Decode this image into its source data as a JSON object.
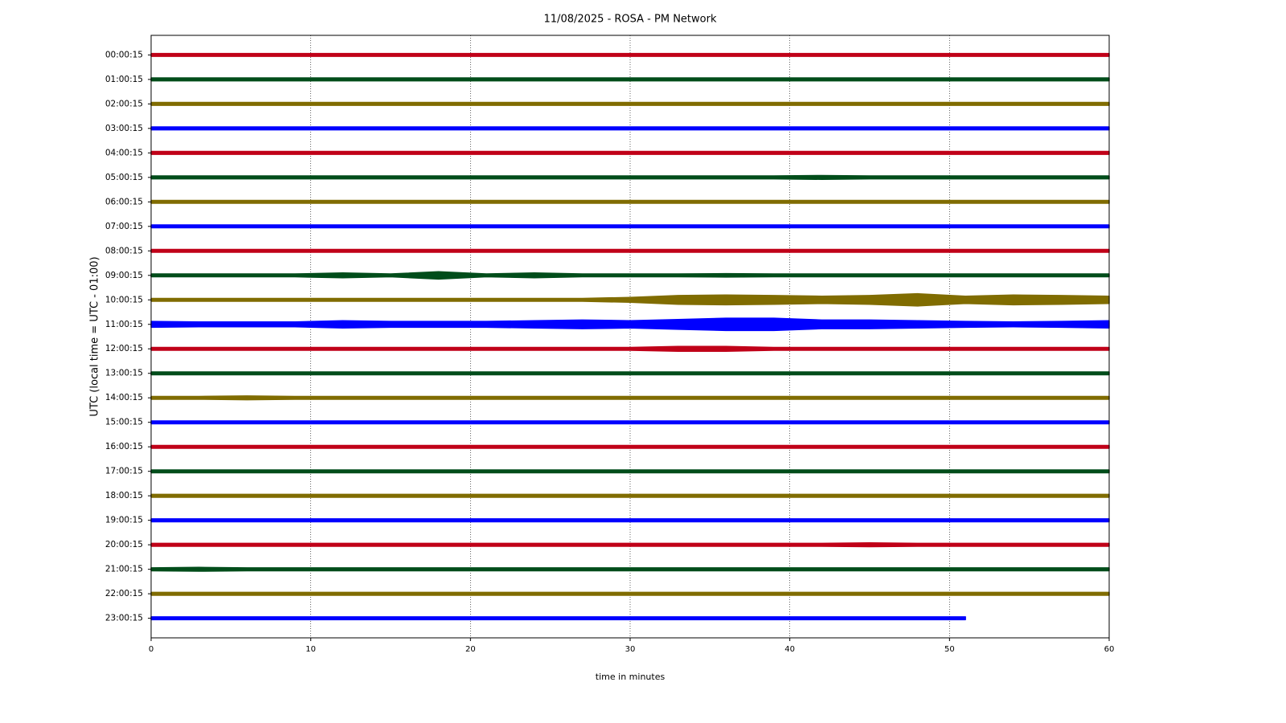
{
  "chart_data": {
    "type": "helicorder",
    "title": "11/08/2025 - ROSA - PM Network",
    "xlabel": "time in minutes",
    "ylabel": "UTC (local time = UTC - 01:00)",
    "xlim": [
      0,
      60
    ],
    "xticks": [
      0,
      10,
      20,
      30,
      40,
      50,
      60
    ],
    "grid": true,
    "x": [
      0,
      3,
      6,
      9,
      12,
      15,
      18,
      21,
      24,
      27,
      30,
      33,
      36,
      39,
      42,
      45,
      48,
      51,
      54,
      57,
      60
    ],
    "series": [
      {
        "name": "00:00:15",
        "color": "#c00018",
        "values": [
          0.06,
          0.06,
          0.06,
          0.06,
          0.06,
          0.06,
          0.06,
          0.06,
          0.06,
          0.06,
          0.06,
          0.06,
          0.06,
          0.06,
          0.06,
          0.06,
          0.06,
          0.06,
          0.06,
          0.06,
          0.06
        ]
      },
      {
        "name": "01:00:15",
        "color": "#004d1a",
        "values": [
          0.06,
          0.06,
          0.06,
          0.06,
          0.06,
          0.06,
          0.06,
          0.06,
          0.06,
          0.06,
          0.06,
          0.06,
          0.06,
          0.06,
          0.06,
          0.06,
          0.06,
          0.06,
          0.06,
          0.06,
          0.06
        ]
      },
      {
        "name": "02:00:15",
        "color": "#806c00",
        "values": [
          0.06,
          0.06,
          0.06,
          0.06,
          0.06,
          0.06,
          0.06,
          0.06,
          0.06,
          0.06,
          0.06,
          0.06,
          0.06,
          0.06,
          0.06,
          0.06,
          0.06,
          0.06,
          0.06,
          0.06,
          0.06
        ]
      },
      {
        "name": "03:00:15",
        "color": "#0000ff",
        "values": [
          0.06,
          0.06,
          0.06,
          0.06,
          0.06,
          0.06,
          0.06,
          0.06,
          0.06,
          0.06,
          0.06,
          0.06,
          0.06,
          0.06,
          0.06,
          0.06,
          0.06,
          0.06,
          0.06,
          0.06,
          0.06
        ]
      },
      {
        "name": "04:00:15",
        "color": "#c00018",
        "values": [
          0.06,
          0.06,
          0.06,
          0.06,
          0.06,
          0.06,
          0.06,
          0.06,
          0.06,
          0.06,
          0.06,
          0.06,
          0.06,
          0.06,
          0.06,
          0.06,
          0.06,
          0.06,
          0.06,
          0.06,
          0.06
        ]
      },
      {
        "name": "05:00:15",
        "color": "#004d1a",
        "values": [
          0.06,
          0.06,
          0.06,
          0.06,
          0.06,
          0.06,
          0.06,
          0.06,
          0.06,
          0.06,
          0.06,
          0.06,
          0.06,
          0.06,
          0.08,
          0.06,
          0.06,
          0.06,
          0.06,
          0.06,
          0.06
        ]
      },
      {
        "name": "06:00:15",
        "color": "#806c00",
        "values": [
          0.06,
          0.06,
          0.06,
          0.06,
          0.06,
          0.06,
          0.06,
          0.06,
          0.06,
          0.06,
          0.06,
          0.06,
          0.06,
          0.06,
          0.06,
          0.06,
          0.06,
          0.06,
          0.06,
          0.06,
          0.06
        ]
      },
      {
        "name": "07:00:15",
        "color": "#0000ff",
        "values": [
          0.06,
          0.06,
          0.06,
          0.06,
          0.06,
          0.06,
          0.06,
          0.06,
          0.06,
          0.06,
          0.06,
          0.06,
          0.06,
          0.06,
          0.06,
          0.06,
          0.06,
          0.06,
          0.06,
          0.06,
          0.06
        ]
      },
      {
        "name": "08:00:15",
        "color": "#c00018",
        "values": [
          0.06,
          0.06,
          0.06,
          0.06,
          0.06,
          0.06,
          0.06,
          0.06,
          0.06,
          0.06,
          0.06,
          0.06,
          0.06,
          0.06,
          0.06,
          0.06,
          0.06,
          0.06,
          0.06,
          0.06,
          0.06
        ]
      },
      {
        "name": "09:00:15",
        "color": "#004d1a",
        "values": [
          0.06,
          0.06,
          0.06,
          0.06,
          0.1,
          0.06,
          0.15,
          0.06,
          0.1,
          0.06,
          0.06,
          0.06,
          0.07,
          0.06,
          0.06,
          0.06,
          0.06,
          0.06,
          0.06,
          0.06,
          0.06
        ]
      },
      {
        "name": "10:00:15",
        "color": "#806c00",
        "values": [
          0.06,
          0.06,
          0.06,
          0.06,
          0.06,
          0.06,
          0.06,
          0.06,
          0.06,
          0.06,
          0.1,
          0.18,
          0.2,
          0.18,
          0.15,
          0.18,
          0.25,
          0.15,
          0.2,
          0.18,
          0.15
        ]
      },
      {
        "name": "11:00:15",
        "color": "#0000ff",
        "values": [
          0.12,
          0.1,
          0.1,
          0.1,
          0.15,
          0.12,
          0.12,
          0.12,
          0.15,
          0.18,
          0.15,
          0.2,
          0.25,
          0.25,
          0.18,
          0.18,
          0.15,
          0.12,
          0.1,
          0.12,
          0.15
        ]
      },
      {
        "name": "12:00:15",
        "color": "#c00018",
        "values": [
          0.06,
          0.06,
          0.06,
          0.06,
          0.06,
          0.06,
          0.06,
          0.06,
          0.06,
          0.06,
          0.06,
          0.1,
          0.1,
          0.06,
          0.06,
          0.06,
          0.06,
          0.06,
          0.06,
          0.06,
          0.06
        ]
      },
      {
        "name": "13:00:15",
        "color": "#004d1a",
        "values": [
          0.06,
          0.06,
          0.06,
          0.06,
          0.06,
          0.06,
          0.06,
          0.06,
          0.06,
          0.06,
          0.06,
          0.06,
          0.06,
          0.06,
          0.06,
          0.06,
          0.06,
          0.06,
          0.06,
          0.06,
          0.06
        ]
      },
      {
        "name": "14:00:15",
        "color": "#806c00",
        "values": [
          0.06,
          0.06,
          0.08,
          0.06,
          0.06,
          0.06,
          0.06,
          0.06,
          0.06,
          0.06,
          0.06,
          0.06,
          0.06,
          0.06,
          0.06,
          0.06,
          0.06,
          0.06,
          0.06,
          0.06,
          0.06
        ]
      },
      {
        "name": "15:00:15",
        "color": "#0000ff",
        "values": [
          0.06,
          0.06,
          0.06,
          0.06,
          0.06,
          0.06,
          0.06,
          0.06,
          0.06,
          0.06,
          0.06,
          0.06,
          0.06,
          0.06,
          0.06,
          0.06,
          0.06,
          0.06,
          0.06,
          0.06,
          0.06
        ]
      },
      {
        "name": "16:00:15",
        "color": "#c00018",
        "values": [
          0.06,
          0.06,
          0.06,
          0.06,
          0.06,
          0.06,
          0.06,
          0.06,
          0.06,
          0.06,
          0.06,
          0.06,
          0.06,
          0.06,
          0.06,
          0.06,
          0.06,
          0.06,
          0.06,
          0.06,
          0.06
        ]
      },
      {
        "name": "17:00:15",
        "color": "#004d1a",
        "values": [
          0.06,
          0.06,
          0.06,
          0.06,
          0.06,
          0.06,
          0.06,
          0.06,
          0.06,
          0.06,
          0.06,
          0.06,
          0.06,
          0.06,
          0.06,
          0.06,
          0.06,
          0.06,
          0.06,
          0.06,
          0.06
        ]
      },
      {
        "name": "18:00:15",
        "color": "#806c00",
        "values": [
          0.06,
          0.06,
          0.06,
          0.06,
          0.06,
          0.06,
          0.06,
          0.06,
          0.06,
          0.06,
          0.06,
          0.06,
          0.06,
          0.06,
          0.06,
          0.06,
          0.06,
          0.06,
          0.06,
          0.06,
          0.06
        ]
      },
      {
        "name": "19:00:15",
        "color": "#0000ff",
        "values": [
          0.06,
          0.06,
          0.06,
          0.06,
          0.06,
          0.06,
          0.06,
          0.06,
          0.06,
          0.06,
          0.06,
          0.06,
          0.06,
          0.06,
          0.06,
          0.06,
          0.06,
          0.06,
          0.06,
          0.06,
          0.06
        ]
      },
      {
        "name": "20:00:15",
        "color": "#c00018",
        "values": [
          0.06,
          0.06,
          0.06,
          0.06,
          0.06,
          0.06,
          0.06,
          0.06,
          0.06,
          0.06,
          0.06,
          0.06,
          0.06,
          0.06,
          0.06,
          0.08,
          0.06,
          0.06,
          0.06,
          0.06,
          0.06
        ]
      },
      {
        "name": "21:00:15",
        "color": "#004d1a",
        "values": [
          0.06,
          0.08,
          0.06,
          0.06,
          0.06,
          0.06,
          0.06,
          0.06,
          0.06,
          0.06,
          0.06,
          0.06,
          0.06,
          0.06,
          0.06,
          0.06,
          0.06,
          0.06,
          0.06,
          0.06,
          0.06
        ]
      },
      {
        "name": "22:00:15",
        "color": "#806c00",
        "values": [
          0.06,
          0.06,
          0.06,
          0.06,
          0.06,
          0.06,
          0.06,
          0.06,
          0.06,
          0.06,
          0.06,
          0.06,
          0.06,
          0.06,
          0.06,
          0.06,
          0.06,
          0.06,
          0.06,
          0.06,
          0.06
        ]
      },
      {
        "name": "23:00:15",
        "color": "#0000ff",
        "values": [
          0.06,
          0.06,
          0.06,
          0.06,
          0.06,
          0.06,
          0.06,
          0.06,
          0.06,
          0.06,
          0.06,
          0.06,
          0.06,
          0.06,
          0.06,
          0.06,
          0.06,
          0.06,
          null,
          null,
          null
        ]
      }
    ]
  }
}
